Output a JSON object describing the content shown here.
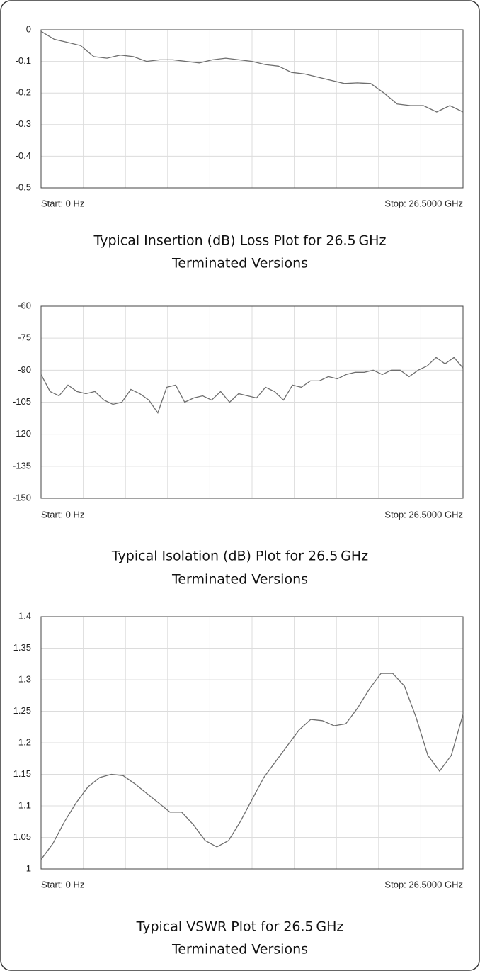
{
  "chart_data": [
    {
      "type": "line",
      "title_lines": [
        "Typical Insertion (dB) Loss Plot for 26.5 GHz",
        "Terminated Versions"
      ],
      "x_start_label": "Start: 0 Hz",
      "x_stop_label": "Stop: 26.5000 GHz",
      "ylim": [
        -0.5,
        0
      ],
      "yticks": [
        0,
        -0.1,
        -0.2,
        -0.3,
        -0.4,
        -0.5
      ],
      "grid": true,
      "color": "#6e6e6e",
      "values": [
        -0.005,
        -0.03,
        -0.04,
        -0.05,
        -0.085,
        -0.09,
        -0.08,
        -0.085,
        -0.1,
        -0.095,
        -0.095,
        -0.1,
        -0.105,
        -0.095,
        -0.09,
        -0.095,
        -0.1,
        -0.11,
        -0.115,
        -0.135,
        -0.14,
        -0.15,
        -0.16,
        -0.17,
        -0.168,
        -0.17,
        -0.2,
        -0.235,
        -0.24,
        -0.24,
        -0.26,
        -0.24,
        -0.26
      ]
    },
    {
      "type": "line",
      "title_lines": [
        "Typical Isolation (dB) Plot for 26.5 GHz",
        "Terminated Versions"
      ],
      "x_start_label": "Start: 0 Hz",
      "x_stop_label": "Stop: 26.5000 GHz",
      "ylim": [
        -150,
        -60
      ],
      "yticks": [
        -60,
        -75,
        -90,
        -105,
        -120,
        -135,
        -150
      ],
      "grid": true,
      "color": "#6e6e6e",
      "values": [
        -92,
        -100,
        -102,
        -97,
        -100,
        -101,
        -100,
        -104,
        -106,
        -105,
        -99,
        -101,
        -104,
        -110,
        -98,
        -97,
        -105,
        -103,
        -102,
        -104,
        -100,
        -105,
        -101,
        -102,
        -103,
        -98,
        -100,
        -104,
        -97,
        -98,
        -95,
        -95,
        -93,
        -94,
        -92,
        -91,
        -91,
        -90,
        -92,
        -90,
        -90,
        -93,
        -90,
        -88,
        -84,
        -87,
        -84,
        -89
      ]
    },
    {
      "type": "line",
      "title_lines": [
        "Typical VSWR Plot for 26.5 GHz",
        "Terminated Versions"
      ],
      "x_start_label": "Start: 0 Hz",
      "x_stop_label": "Stop: 26.5000 GHz",
      "ylim": [
        1,
        1.4
      ],
      "yticks": [
        1.4,
        1.35,
        1.3,
        1.25,
        1.2,
        1.15,
        1.1,
        1.05,
        1
      ],
      "grid": true,
      "color": "#6e6e6e",
      "values": [
        1.015,
        1.04,
        1.075,
        1.105,
        1.13,
        1.145,
        1.15,
        1.148,
        1.135,
        1.12,
        1.105,
        1.09,
        1.09,
        1.07,
        1.045,
        1.035,
        1.045,
        1.075,
        1.11,
        1.145,
        1.17,
        1.195,
        1.22,
        1.237,
        1.235,
        1.227,
        1.23,
        1.255,
        1.285,
        1.31,
        1.31,
        1.29,
        1.24,
        1.18,
        1.155,
        1.18,
        1.245
      ]
    }
  ]
}
